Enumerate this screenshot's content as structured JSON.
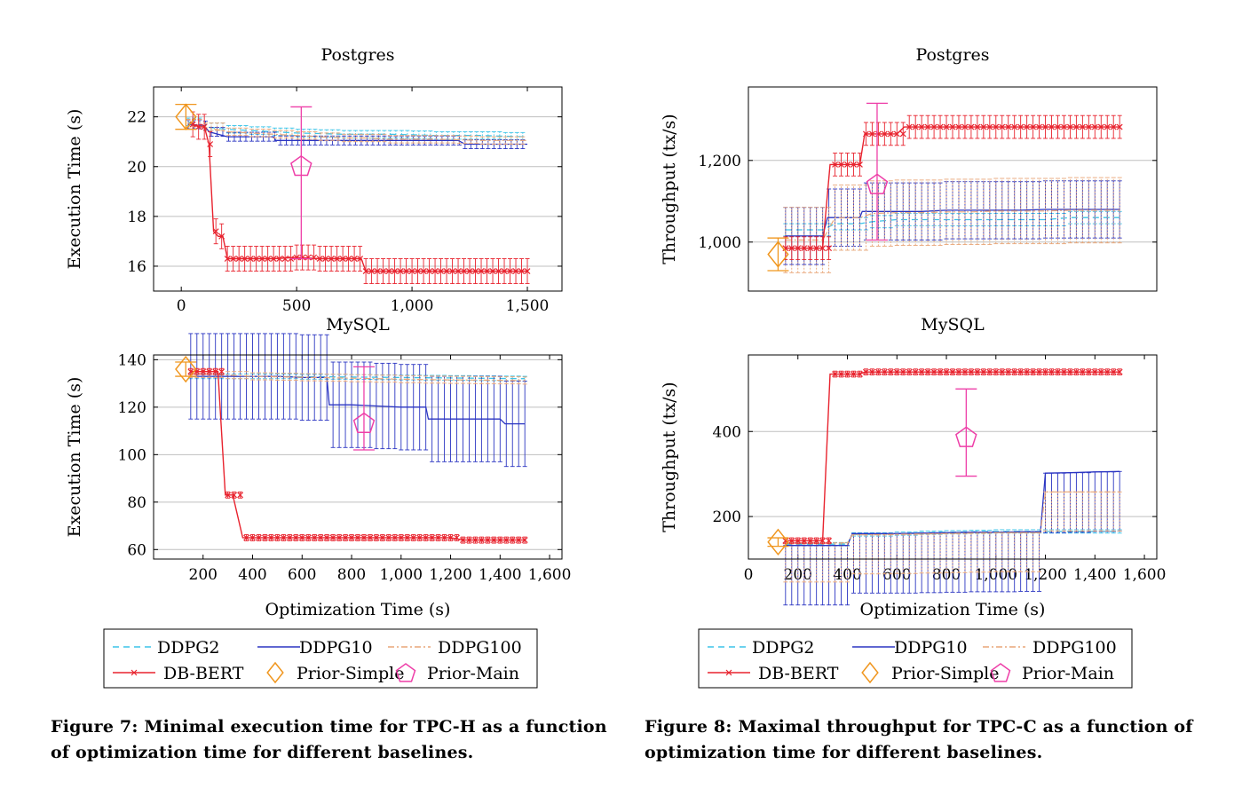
{
  "figures": [
    {
      "caption": "Figure 7: Minimal execution time for TPC-H as a function of optimization time for different baselines.",
      "xlabel": "Optimization Time (s)",
      "legend": [
        "DDPG2",
        "DDPG10",
        "DDPG100",
        "DB-BERT",
        "Prior-Simple",
        "Prior-Main"
      ]
    },
    {
      "caption": "Figure 8: Maximal throughput for TPC-C as a function of optimization time for different baselines.",
      "xlabel": "Optimization Time (s)",
      "legend": [
        "DDPG2",
        "DDPG10",
        "DDPG100",
        "DB-BERT",
        "Prior-Simple",
        "Prior-Main"
      ]
    }
  ],
  "colors": {
    "DDPG2": "#3cc4e8",
    "DDPG10": "#2b35c2",
    "DDPG100": "#e8a678",
    "DB-BERT": "#e8232e",
    "Prior-Simple": "#f0961e",
    "Prior-Main": "#ee3fa8",
    "grid": "#bfbfbf"
  },
  "chart_data": [
    {
      "id": "f7-postgres",
      "type": "line",
      "title": "Postgres",
      "ylabel": "Execution Time (s)",
      "xlim": [
        -120,
        1650
      ],
      "ylim": [
        15.0,
        23.2
      ],
      "xticks": [
        0,
        500,
        1000,
        1500
      ],
      "xtick_labels": [
        "0",
        "500",
        "1,000",
        "1,500"
      ],
      "yticks": [
        16,
        18,
        20,
        22
      ],
      "ytick_labels": [
        "16",
        "18",
        "20",
        "22"
      ],
      "series": [
        {
          "name": "DDPG2",
          "x": [
            30,
            100,
            200,
            300,
            400,
            500,
            600,
            700,
            800,
            900,
            1000,
            1100,
            1200,
            1300,
            1400,
            1500
          ],
          "y": [
            21.8,
            21.6,
            21.5,
            21.45,
            21.4,
            21.35,
            21.33,
            21.3,
            21.3,
            21.3,
            21.28,
            21.25,
            21.25,
            21.25,
            21.22,
            21.2
          ],
          "err": 0.15
        },
        {
          "name": "DDPG10",
          "x": [
            30,
            100,
            120,
            200,
            300,
            400,
            410,
            500,
            600,
            700,
            800,
            900,
            1000,
            1100,
            1200,
            1230,
            1300,
            1400,
            1500
          ],
          "y": [
            21.7,
            21.65,
            21.4,
            21.2,
            21.2,
            21.2,
            21.05,
            21.05,
            21.05,
            21.05,
            21.05,
            21.05,
            21.05,
            21.05,
            21.05,
            20.9,
            20.9,
            20.9,
            20.9
          ],
          "err": 0.18
        },
        {
          "name": "DDPG100",
          "x": [
            30,
            100,
            200,
            300,
            400,
            500,
            600,
            700,
            800,
            900,
            1000,
            1100,
            1200,
            1300,
            1400,
            1500
          ],
          "y": [
            21.75,
            21.6,
            21.4,
            21.35,
            21.3,
            21.25,
            21.2,
            21.15,
            21.15,
            21.1,
            21.1,
            21.1,
            21.08,
            21.05,
            21.05,
            21.05
          ],
          "err": 0.15
        },
        {
          "name": "DB-BERT",
          "x": [
            50,
            75,
            100,
            120,
            140,
            160,
            180,
            200,
            300,
            400,
            500,
            600,
            700,
            780,
            800,
            900,
            1000,
            1100,
            1200,
            1300,
            1400,
            1500
          ],
          "y": [
            21.7,
            21.6,
            21.6,
            20.9,
            17.4,
            17.2,
            17.2,
            16.3,
            16.3,
            16.3,
            16.35,
            16.3,
            16.3,
            16.3,
            15.8,
            15.8,
            15.8,
            15.8,
            15.8,
            15.8,
            15.8,
            15.8
          ],
          "err": 0.5
        },
        {
          "name": "Prior-Simple",
          "x": [
            20
          ],
          "y": [
            22.0
          ],
          "err": 0.5
        },
        {
          "name": "Prior-Main",
          "x": [
            520
          ],
          "y": [
            20.0
          ],
          "err_low": 3.7,
          "err_high": 2.4
        }
      ]
    },
    {
      "id": "f7-mysql",
      "type": "line",
      "title": "MySQL",
      "ylabel": "Execution Time (s)",
      "xlim": [
        0,
        1650
      ],
      "ylim": [
        56,
        142
      ],
      "xticks": [
        200,
        400,
        600,
        800,
        1000,
        1200,
        1400,
        1600
      ],
      "xtick_labels": [
        "200",
        "400",
        "600",
        "800",
        "1,000",
        "1,200",
        "1,400",
        "1,600"
      ],
      "yticks": [
        60,
        80,
        100,
        120,
        140
      ],
      "ytick_labels": [
        "60",
        "80",
        "100",
        "120",
        "140"
      ],
      "series": [
        {
          "name": "DDPG2",
          "x": [
            150,
            200,
            300,
            400,
            500,
            600,
            700,
            800,
            900,
            1000,
            1100,
            1200,
            1300,
            1400,
            1500
          ],
          "y": [
            133,
            133,
            133,
            133,
            133,
            132.8,
            132.8,
            132.7,
            132.6,
            132.5,
            132.4,
            132.3,
            132.2,
            132.1,
            132.0
          ],
          "err": 1
        },
        {
          "name": "DDPG10",
          "x": [
            150,
            200,
            300,
            400,
            500,
            600,
            700,
            710,
            800,
            900,
            1000,
            1100,
            1110,
            1200,
            1300,
            1400,
            1420,
            1500
          ],
          "y": [
            133,
            133,
            133,
            133,
            133,
            132.5,
            132.5,
            121,
            121,
            120.5,
            120,
            120,
            115,
            115,
            115,
            115,
            113,
            113
          ],
          "err": 18
        },
        {
          "name": "DDPG100",
          "x": [
            150,
            200,
            300,
            400,
            500,
            600,
            700,
            800,
            900,
            1000,
            1100,
            1200,
            1300,
            1400,
            1500
          ],
          "y": [
            134,
            134,
            133.5,
            133,
            132.8,
            132.6,
            132.4,
            132.2,
            132,
            131.8,
            131.6,
            131.5,
            131.4,
            131.3,
            131.2
          ],
          "err": 1.5
        },
        {
          "name": "DB-BERT",
          "x": [
            150,
            200,
            260,
            290,
            320,
            360,
            400,
            500,
            600,
            700,
            800,
            900,
            1000,
            1100,
            1200,
            1250,
            1300,
            1400,
            1500
          ],
          "y": [
            135,
            135,
            135,
            83,
            83,
            65,
            65,
            65,
            65,
            65,
            65,
            65,
            65,
            65,
            65,
            64,
            64,
            64,
            64
          ],
          "err": 1.3
        },
        {
          "name": "Prior-Simple",
          "x": [
            130
          ],
          "y": [
            136
          ],
          "err": 3
        },
        {
          "name": "Prior-Main",
          "x": [
            850
          ],
          "y": [
            113
          ],
          "err_low": 11,
          "err_high": 24
        }
      ]
    },
    {
      "id": "f8-postgres",
      "type": "line",
      "title": "Postgres",
      "ylabel": "Throughput (tx/s)",
      "xlim": [
        0,
        1650
      ],
      "ylim": [
        880,
        1380
      ],
      "xticks": [],
      "xtick_labels": [],
      "yticks": [
        1000,
        1200
      ],
      "ytick_labels": [
        "1,000",
        "1,200"
      ],
      "series": [
        {
          "name": "DDPG2",
          "x": [
            150,
            200,
            250,
            300,
            350,
            400,
            450,
            500,
            600,
            700,
            800,
            900,
            1000,
            1100,
            1200,
            1300,
            1400,
            1500
          ],
          "y": [
            1030,
            1030,
            1030,
            1030,
            1045,
            1045,
            1045,
            1050,
            1055,
            1055,
            1055,
            1055,
            1055,
            1055,
            1055,
            1060,
            1060,
            1060
          ],
          "err": 15
        },
        {
          "name": "DDPG10",
          "x": [
            150,
            200,
            250,
            300,
            320,
            400,
            450,
            460,
            500,
            600,
            700,
            800,
            900,
            1000,
            1100,
            1200,
            1300,
            1400,
            1500
          ],
          "y": [
            1015,
            1015,
            1015,
            1015,
            1060,
            1060,
            1060,
            1075,
            1075,
            1075,
            1075,
            1078,
            1078,
            1078,
            1078,
            1080,
            1080,
            1080,
            1080
          ],
          "err": 70
        },
        {
          "name": "DDPG100",
          "x": [
            150,
            200,
            250,
            300,
            350,
            400,
            450,
            500,
            600,
            700,
            800,
            900,
            1000,
            1100,
            1200,
            1300,
            1400,
            1500
          ],
          "y": [
            1005,
            1005,
            1005,
            1005,
            1060,
            1060,
            1060,
            1070,
            1072,
            1072,
            1074,
            1074,
            1076,
            1076,
            1076,
            1078,
            1078,
            1078
          ],
          "err": 80
        },
        {
          "name": "DB-BERT",
          "x": [
            150,
            200,
            250,
            300,
            330,
            400,
            450,
            470,
            500,
            550,
            600,
            630,
            700,
            800,
            900,
            1000,
            1100,
            1200,
            1300,
            1400,
            1500
          ],
          "y": [
            985,
            985,
            985,
            985,
            1190,
            1190,
            1190,
            1265,
            1265,
            1265,
            1265,
            1282,
            1282,
            1282,
            1282,
            1282,
            1282,
            1282,
            1282,
            1282,
            1282
          ],
          "err": 28
        },
        {
          "name": "Prior-Simple",
          "x": [
            120
          ],
          "y": [
            970
          ],
          "err": 40
        },
        {
          "name": "Prior-Main",
          "x": [
            520
          ],
          "y": [
            1140
          ],
          "err_low": 135,
          "err_high": 200
        }
      ]
    },
    {
      "id": "f8-mysql",
      "type": "line",
      "title": "MySQL",
      "ylabel": "Throughput (tx/s)",
      "xlim": [
        0,
        1650
      ],
      "ylim": [
        100,
        580
      ],
      "xticks": [
        0,
        200,
        400,
        600,
        800,
        1000,
        1200,
        1400,
        1600
      ],
      "xtick_labels": [
        "0",
        "200",
        "400",
        "600",
        "800",
        "1,000",
        "1,200",
        "1,400",
        "1,600"
      ],
      "yticks": [
        200,
        400
      ],
      "ytick_labels": [
        "200",
        "400"
      ],
      "series": [
        {
          "name": "DDPG2",
          "x": [
            150,
            200,
            300,
            400,
            420,
            500,
            600,
            700,
            800,
            900,
            1000,
            1100,
            1200,
            1300,
            1400,
            1500
          ],
          "y": [
            135,
            135,
            135,
            135,
            158,
            158,
            160,
            162,
            163,
            164,
            165,
            165,
            165,
            165,
            165,
            165
          ],
          "err": 4
        },
        {
          "name": "DDPG10",
          "x": [
            150,
            200,
            300,
            400,
            420,
            500,
            600,
            700,
            800,
            900,
            1000,
            1100,
            1180,
            1200,
            1300,
            1400,
            1500
          ],
          "y": [
            132,
            132,
            132,
            132,
            160,
            160,
            160,
            161,
            162,
            163,
            163,
            164,
            164,
            302,
            303,
            305,
            306
          ],
          "err_low": 140,
          "err_high": 0
        },
        {
          "name": "DDPG100",
          "x": [
            150,
            200,
            300,
            400,
            420,
            500,
            600,
            700,
            800,
            900,
            1000,
            1100,
            1180,
            1200,
            1300,
            1400,
            1500
          ],
          "y": [
            138,
            138,
            138,
            138,
            157,
            157,
            158,
            159,
            160,
            161,
            162,
            162,
            162,
            258,
            258,
            258,
            258
          ],
          "err_low": 92,
          "err_high": 0
        },
        {
          "name": "DB-BERT",
          "x": [
            150,
            200,
            250,
            300,
            330,
            400,
            450,
            470,
            500,
            600,
            700,
            800,
            900,
            1000,
            1100,
            1200,
            1300,
            1400,
            1500
          ],
          "y": [
            143,
            143,
            143,
            143,
            535,
            535,
            535,
            540,
            540,
            540,
            540,
            540,
            540,
            540,
            540,
            540,
            540,
            540,
            540
          ],
          "err": 7
        },
        {
          "name": "Prior-Simple",
          "x": [
            120
          ],
          "y": [
            140
          ],
          "err": 10
        },
        {
          "name": "Prior-Main",
          "x": [
            880
          ],
          "y": [
            385
          ],
          "err_low": 90,
          "err_high": 115
        }
      ]
    }
  ]
}
